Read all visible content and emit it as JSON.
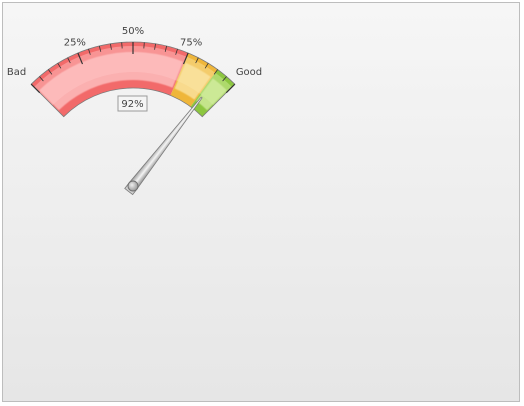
{
  "chart_data": {
    "type": "gauge",
    "range": [
      0,
      100
    ],
    "value": 92,
    "value_label": "92%",
    "min_label": "Bad",
    "max_label": "Good",
    "major_ticks": [
      {
        "value": 25,
        "label": "25%"
      },
      {
        "value": 50,
        "label": "50%"
      },
      {
        "value": 75,
        "label": "75%"
      }
    ],
    "bands": [
      {
        "from": 0,
        "to": 75,
        "color": "#f26a6a",
        "light": "#ffc8c8"
      },
      {
        "from": 75,
        "to": 90,
        "color": "#efb63a",
        "light": "#fbe7a9"
      },
      {
        "from": 90,
        "to": 100,
        "color": "#8cc63f",
        "light": "#d7efa5"
      }
    ]
  }
}
